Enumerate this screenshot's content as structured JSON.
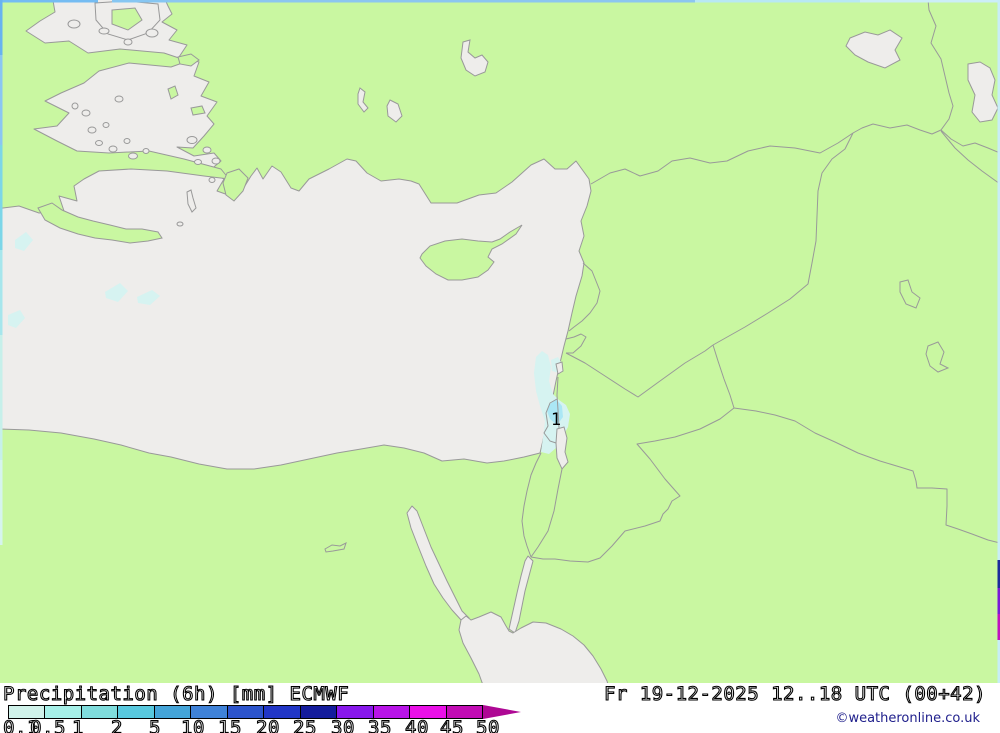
{
  "map": {
    "region_label": "1",
    "colors": {
      "sea": "#eeedeb",
      "land": "#c9f7a1",
      "border": "#999999",
      "precip_light": "#d6f3f1",
      "precip_spot": "#abe7f5"
    }
  },
  "legend": {
    "title": "Precipitation (6h) [mm] ECMWF",
    "scale_values": [
      "0.1",
      "0.5",
      "1",
      "2",
      "5",
      "10",
      "15",
      "20",
      "25",
      "30",
      "35",
      "40",
      "45",
      "50"
    ],
    "scale_colors": [
      "#d0f2ea",
      "#a6f0e8",
      "#7fdcdc",
      "#58c8de",
      "#44a4d8",
      "#3f82d8",
      "#2c54cc",
      "#2136c6",
      "#141c9c",
      "#8818ec",
      "#b814e8",
      "#ea10e8",
      "#c20cb4"
    ],
    "arrow_color": "#ae0894"
  },
  "status": {
    "datetime": "Fr 19-12-2025 12..18 UTC (00+42)",
    "copyright": "©weatheronline.co.uk"
  }
}
